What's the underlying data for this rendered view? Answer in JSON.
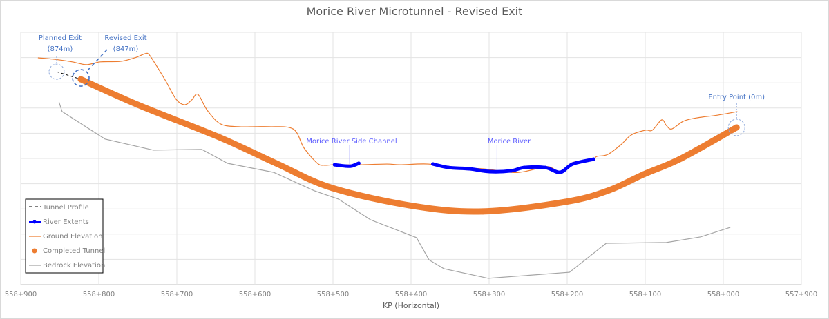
{
  "chart_data": {
    "type": "line",
    "title": "Morice River Microtunnel - Revised Exit",
    "xlabel": "KP (Horizontal)",
    "ylabel": "",
    "xlim": [
      557900,
      558900
    ],
    "x_reversed": true,
    "ylim": [
      0,
      10
    ],
    "y_tick_labels_shown": false,
    "grid": true,
    "legend_position": "bottom-left",
    "x_ticks": [
      {
        "value": 558900,
        "label": "558+900"
      },
      {
        "value": 558800,
        "label": "558+800"
      },
      {
        "value": 558700,
        "label": "558+700"
      },
      {
        "value": 558600,
        "label": "558+600"
      },
      {
        "value": 558500,
        "label": "558+500"
      },
      {
        "value": 558400,
        "label": "558+400"
      },
      {
        "value": 558300,
        "label": "558+300"
      },
      {
        "value": 558200,
        "label": "558+200"
      },
      {
        "value": 558100,
        "label": "558+100"
      },
      {
        "value": 558000,
        "label": "558+000"
      },
      {
        "value": 557900,
        "label": "557+900"
      }
    ],
    "series": [
      {
        "name": "Tunnel Profile",
        "color": "#000000",
        "style": "dashed",
        "points": [
          [
            558854,
            8.44
          ],
          [
            558823,
            8.14
          ]
        ]
      },
      {
        "name": "River Extents",
        "color": "#0000ff",
        "style": "line-markers",
        "segments": [
          [
            [
              558498,
              4.75
            ],
            [
              558484,
              4.7
            ],
            [
              558476,
              4.7
            ],
            [
              558467,
              4.81
            ]
          ],
          [
            [
              558372,
              4.78
            ],
            [
              558352,
              4.64
            ],
            [
              558325,
              4.59
            ],
            [
              558299,
              4.48
            ],
            [
              558272,
              4.51
            ],
            [
              558255,
              4.64
            ],
            [
              558228,
              4.64
            ],
            [
              558209,
              4.45
            ],
            [
              558193,
              4.78
            ],
            [
              558166,
              4.97
            ]
          ]
        ]
      },
      {
        "name": "Ground Elevation",
        "color": "#ed7d31",
        "style": "line",
        "points": [
          [
            558878,
            8.99
          ],
          [
            558856,
            8.93
          ],
          [
            558834,
            8.83
          ],
          [
            558816,
            8.72
          ],
          [
            558798,
            8.83
          ],
          [
            558772,
            8.85
          ],
          [
            558754,
            8.99
          ],
          [
            558741,
            9.15
          ],
          [
            558736,
            9.13
          ],
          [
            558728,
            8.77
          ],
          [
            558714,
            8.06
          ],
          [
            558701,
            7.35
          ],
          [
            558690,
            7.13
          ],
          [
            558681,
            7.32
          ],
          [
            558673,
            7.54
          ],
          [
            558661,
            6.91
          ],
          [
            558644,
            6.37
          ],
          [
            558621,
            6.26
          ],
          [
            558599,
            6.26
          ],
          [
            558582,
            6.26
          ],
          [
            558551,
            6.17
          ],
          [
            558537,
            5.41
          ],
          [
            558520,
            4.81
          ],
          [
            558511,
            4.73
          ],
          [
            558498,
            4.75
          ],
          [
            558467,
            4.75
          ],
          [
            558431,
            4.78
          ],
          [
            558414,
            4.75
          ],
          [
            558378,
            4.78
          ],
          [
            558343,
            4.62
          ],
          [
            558308,
            4.59
          ],
          [
            558272,
            4.45
          ],
          [
            558255,
            4.48
          ],
          [
            558228,
            4.67
          ],
          [
            558219,
            4.62
          ],
          [
            558209,
            4.45
          ],
          [
            558193,
            4.84
          ],
          [
            558168,
            4.95
          ],
          [
            558162,
            5.08
          ],
          [
            558148,
            5.16
          ],
          [
            558131,
            5.55
          ],
          [
            558118,
            5.93
          ],
          [
            558100,
            6.12
          ],
          [
            558091,
            6.12
          ],
          [
            558079,
            6.53
          ],
          [
            558073,
            6.31
          ],
          [
            558066,
            6.17
          ],
          [
            558051,
            6.48
          ],
          [
            558034,
            6.61
          ],
          [
            558007,
            6.72
          ],
          [
            557982,
            6.86
          ]
        ]
      },
      {
        "name": "Completed Tunnel",
        "color": "#ed7d31",
        "style": "markers",
        "points": [
          [
            558823,
            8.14
          ],
          [
            558750,
            7.13
          ],
          [
            558644,
            5.82
          ],
          [
            558573,
            4.81
          ],
          [
            558501,
            3.83
          ],
          [
            558396,
            3.11
          ],
          [
            558308,
            2.9
          ],
          [
            558202,
            3.28
          ],
          [
            558148,
            3.72
          ],
          [
            558102,
            4.37
          ],
          [
            558054,
            5.0
          ],
          [
            557983,
            6.23
          ]
        ]
      },
      {
        "name": "Bedrock Elevation",
        "color": "#a5a5a5",
        "style": "line",
        "points": [
          [
            558851,
            7.24
          ],
          [
            558847,
            6.86
          ],
          [
            558792,
            5.77
          ],
          [
            558730,
            5.33
          ],
          [
            558668,
            5.36
          ],
          [
            558635,
            4.81
          ],
          [
            558576,
            4.45
          ],
          [
            558524,
            3.72
          ],
          [
            558493,
            3.39
          ],
          [
            558452,
            2.57
          ],
          [
            558393,
            1.86
          ],
          [
            558377,
            0.98
          ],
          [
            558358,
            0.63
          ],
          [
            558301,
            0.25
          ],
          [
            558197,
            0.49
          ],
          [
            558150,
            1.64
          ],
          [
            558073,
            1.67
          ],
          [
            558029,
            1.89
          ],
          [
            557991,
            2.27
          ]
        ]
      }
    ],
    "annotations": [
      {
        "text": [
          "Planned Exit",
          "(874m)"
        ],
        "at": [
          558854,
          8.44
        ]
      },
      {
        "text": [
          "Revised Exit",
          "(847m)"
        ],
        "at": [
          558823,
          8.14
        ]
      },
      {
        "text": [
          "Entry Point (0m)"
        ],
        "at": [
          557983,
          6.23
        ]
      },
      {
        "text": [
          "Morice River Side Channel"
        ],
        "at": [
          558484,
          4.7
        ]
      },
      {
        "text": [
          "Morice River"
        ],
        "at": [
          558290,
          4.48
        ]
      }
    ]
  }
}
